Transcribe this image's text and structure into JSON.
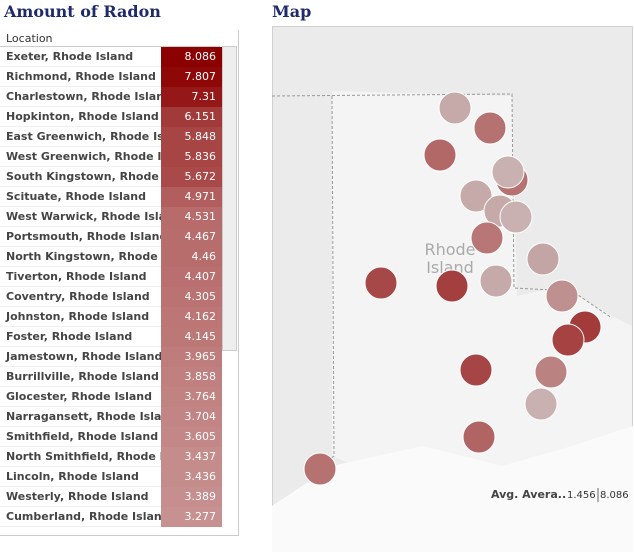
{
  "header": {
    "title": "Amount of Radon",
    "map_title": "Map"
  },
  "table": {
    "column": "Location",
    "rows": [
      [
        "Exeter, Rhode Island",
        8.086
      ],
      [
        "Richmond, Rhode Island",
        7.807
      ],
      [
        "Charlestown, Rhode Island",
        7.31
      ],
      [
        "Hopkinton, Rhode Island",
        6.151
      ],
      [
        "East Greenwich, Rhode Isla..",
        5.848
      ],
      [
        "West Greenwich, Rhode Isla..",
        5.836
      ],
      [
        "South Kingstown, Rhode Isl..",
        5.672
      ],
      [
        "Scituate, Rhode Island",
        4.971
      ],
      [
        "West Warwick, Rhode Island",
        4.531
      ],
      [
        "Portsmouth, Rhode Island",
        4.467
      ],
      [
        "North Kingstown, Rhode Isl..",
        4.46
      ],
      [
        "Tiverton, Rhode Island",
        4.407
      ],
      [
        "Coventry, Rhode Island",
        4.305
      ],
      [
        "Johnston, Rhode Island",
        4.162
      ],
      [
        "Foster, Rhode Island",
        4.145
      ],
      [
        "Jamestown, Rhode Island",
        3.965
      ],
      [
        "Burrillville, Rhode Island",
        3.858
      ],
      [
        "Glocester, Rhode Island",
        3.764
      ],
      [
        "Narragansett, Rhode Island",
        3.704
      ],
      [
        "Smithfield, Rhode Island",
        3.605
      ],
      [
        "North Smithfield, Rhode Isla..",
        3.437
      ],
      [
        "Lincoln, Rhode Island",
        3.436
      ],
      [
        "Westerly, Rhode Island",
        3.389
      ],
      [
        "Cumberland, Rhode Island",
        3.277
      ]
    ]
  },
  "map": {
    "labels": [
      "Rhode",
      "Island"
    ]
  },
  "legend": {
    "title": "Avg. Avera..",
    "min": 1.456,
    "max": 8.086
  }
}
